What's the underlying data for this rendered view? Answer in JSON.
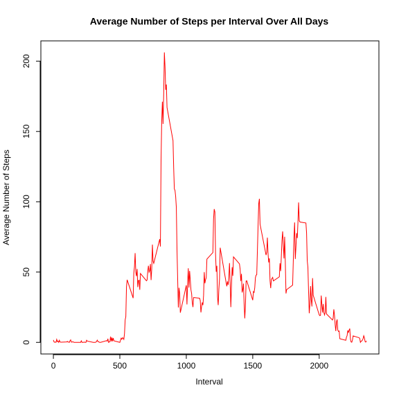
{
  "chart_data": {
    "type": "line",
    "title": "Average Number of Steps per Interval Over All Days",
    "xlabel": "Interval",
    "ylabel": "Average Number of Steps",
    "color": "#ff0000",
    "xlim": [
      -94.2,
      2449.2
    ],
    "ylim": [
      -8.25,
      214.42
    ],
    "xticks": [
      0,
      500,
      1000,
      1500,
      2000
    ],
    "yticks": [
      0,
      50,
      100,
      150,
      200
    ],
    "x": [
      0,
      5,
      10,
      15,
      20,
      25,
      30,
      35,
      40,
      45,
      50,
      55,
      100,
      105,
      110,
      115,
      120,
      125,
      130,
      135,
      140,
      145,
      150,
      155,
      200,
      205,
      210,
      215,
      220,
      225,
      230,
      235,
      240,
      245,
      250,
      255,
      300,
      305,
      310,
      315,
      320,
      325,
      330,
      335,
      340,
      345,
      350,
      355,
      400,
      405,
      410,
      415,
      420,
      425,
      430,
      435,
      440,
      445,
      450,
      455,
      500,
      505,
      510,
      515,
      520,
      525,
      530,
      535,
      540,
      545,
      550,
      555,
      600,
      605,
      610,
      615,
      620,
      625,
      630,
      635,
      640,
      645,
      650,
      655,
      700,
      705,
      710,
      715,
      720,
      725,
      730,
      735,
      740,
      745,
      750,
      755,
      800,
      805,
      810,
      815,
      820,
      825,
      830,
      835,
      840,
      845,
      850,
      855,
      900,
      905,
      910,
      915,
      920,
      925,
      930,
      935,
      940,
      945,
      950,
      955,
      1000,
      1005,
      1010,
      1015,
      1020,
      1025,
      1030,
      1035,
      1040,
      1045,
      1050,
      1055,
      1100,
      1105,
      1110,
      1115,
      1120,
      1125,
      1130,
      1135,
      1140,
      1145,
      1150,
      1155,
      1200,
      1205,
      1210,
      1215,
      1220,
      1225,
      1230,
      1235,
      1240,
      1245,
      1250,
      1255,
      1300,
      1305,
      1310,
      1315,
      1320,
      1325,
      1330,
      1335,
      1340,
      1345,
      1350,
      1355,
      1400,
      1405,
      1410,
      1415,
      1420,
      1425,
      1430,
      1435,
      1440,
      1445,
      1450,
      1455,
      1500,
      1505,
      1510,
      1515,
      1520,
      1525,
      1530,
      1535,
      1540,
      1545,
      1550,
      1555,
      1600,
      1605,
      1610,
      1615,
      1620,
      1625,
      1630,
      1635,
      1640,
      1645,
      1650,
      1655,
      1700,
      1705,
      1710,
      1715,
      1720,
      1725,
      1730,
      1735,
      1740,
      1745,
      1750,
      1755,
      1800,
      1805,
      1810,
      1815,
      1820,
      1825,
      1830,
      1835,
      1840,
      1845,
      1850,
      1855,
      1900,
      1905,
      1910,
      1915,
      1920,
      1925,
      1930,
      1935,
      1940,
      1945,
      1950,
      1955,
      2000,
      2005,
      2010,
      2015,
      2020,
      2025,
      2030,
      2035,
      2040,
      2045,
      2050,
      2055,
      2100,
      2105,
      2110,
      2115,
      2120,
      2125,
      2130,
      2135,
      2140,
      2145,
      2150,
      2155,
      2200,
      2205,
      2210,
      2215,
      2220,
      2225,
      2230,
      2235,
      2240,
      2245,
      2250,
      2255,
      2300,
      2305,
      2310,
      2315,
      2320,
      2325,
      2330,
      2335,
      2340,
      2345,
      2350,
      2355
    ],
    "values": [
      1.7,
      0.3,
      0.1,
      0.2,
      0.1,
      2.1,
      0.5,
      0.9,
      0,
      1.5,
      0.3,
      0.1,
      0.3,
      0.7,
      0.2,
      0.3,
      0,
      1.1,
      1.8,
      0.2,
      0.2,
      0.4,
      0.3,
      0,
      0,
      0,
      1.1,
      0,
      0,
      0.1,
      0,
      0.2,
      0,
      0,
      1.5,
      0.9,
      0,
      0,
      0,
      0,
      0.2,
      0.6,
      1.6,
      0.6,
      0.5,
      0.1,
      0,
      0,
      1.2,
      0.9,
      2.6,
      0,
      0.3,
      0.4,
      4.1,
      0.7,
      3.5,
      0.8,
      3.1,
      1.1,
      0,
      1.6,
      3.0,
      2.2,
      3.3,
      3.0,
      2.1,
      6.1,
      16.0,
      18.3,
      39.5,
      44.5,
      31.5,
      49.3,
      53.8,
      63.5,
      50.0,
      47.1,
      52.2,
      39.3,
      44.0,
      44.2,
      37.4,
      49.0,
      43.8,
      44.4,
      50.5,
      54.5,
      49.9,
      51.0,
      55.7,
      44.3,
      52.3,
      69.5,
      57.8,
      56.2,
      73.4,
      68.2,
      129.4,
      157.5,
      171.2,
      155.4,
      177.3,
      206.2,
      195.9,
      179.6,
      183.4,
      167.0,
      143.5,
      124.0,
      109.1,
      108.1,
      103.7,
      96.0,
      66.2,
      45.2,
      24.8,
      38.8,
      35.0,
      21.1,
      40.6,
      27.0,
      42.4,
      52.7,
      38.9,
      50.8,
      44.3,
      37.4,
      34.7,
      28.3,
      25.1,
      31.9,
      31.4,
      29.7,
      21.3,
      25.5,
      28.4,
      26.5,
      33.4,
      50.0,
      42.0,
      44.6,
      46.0,
      59.2,
      63.9,
      87.7,
      94.8,
      92.8,
      63.4,
      50.2,
      54.5,
      32.4,
      26.5,
      37.7,
      45.1,
      67.3,
      42.3,
      39.9,
      43.3,
      41.0,
      46.2,
      56.4,
      42.8,
      25.1,
      40.0,
      53.5,
      47.3,
      60.8,
      55.8,
      52.0,
      43.6,
      48.7,
      35.5,
      37.5,
      41.8,
      27.5,
      17.1,
      26.1,
      43.6,
      43.8,
      30.0,
      36.1,
      35.5,
      38.8,
      46.0,
      47.8,
      48.1,
      65.3,
      82.9,
      98.7,
      102.1,
      84.0,
      62.1,
      64.1,
      74.5,
      63.2,
      56.9,
      59.8,
      43.9,
      38.6,
      44.7,
      45.5,
      46.2,
      43.7,
      46.6,
      56.3,
      50.7,
      61.2,
      72.7,
      78.9,
      68.9,
      59.7,
      75.1,
      56.5,
      34.8,
      37.5,
      40.7,
      58.0,
      74.7,
      85.3,
      59.3,
      67.8,
      77.7,
      74.2,
      85.3,
      99.5,
      86.6,
      85.6,
      84.9,
      77.8,
      58.0,
      53.4,
      36.3,
      20.7,
      27.4,
      40.0,
      30.2,
      25.5,
      45.7,
      33.5,
      19.6,
      19.0,
      19.3,
      33.3,
      26.8,
      21.2,
      27.3,
      21.3,
      19.5,
      21.3,
      32.3,
      20.2,
      15.9,
      17.2,
      23.5,
      19.2,
      12.5,
      8.0,
      14.7,
      16.3,
      8.7,
      7.8,
      8.1,
      2.6,
      1.5,
      3.7,
      4.8,
      8.5,
      7.1,
      8.7,
      9.8,
      2.2,
      0.3,
      0.1,
      1.6,
      4.6,
      3.3,
      2.8,
      0,
      0.8,
      1.0,
      1.6,
      2.6,
      4.7,
      3.3,
      0.6,
      0.2,
      1.1
    ]
  }
}
